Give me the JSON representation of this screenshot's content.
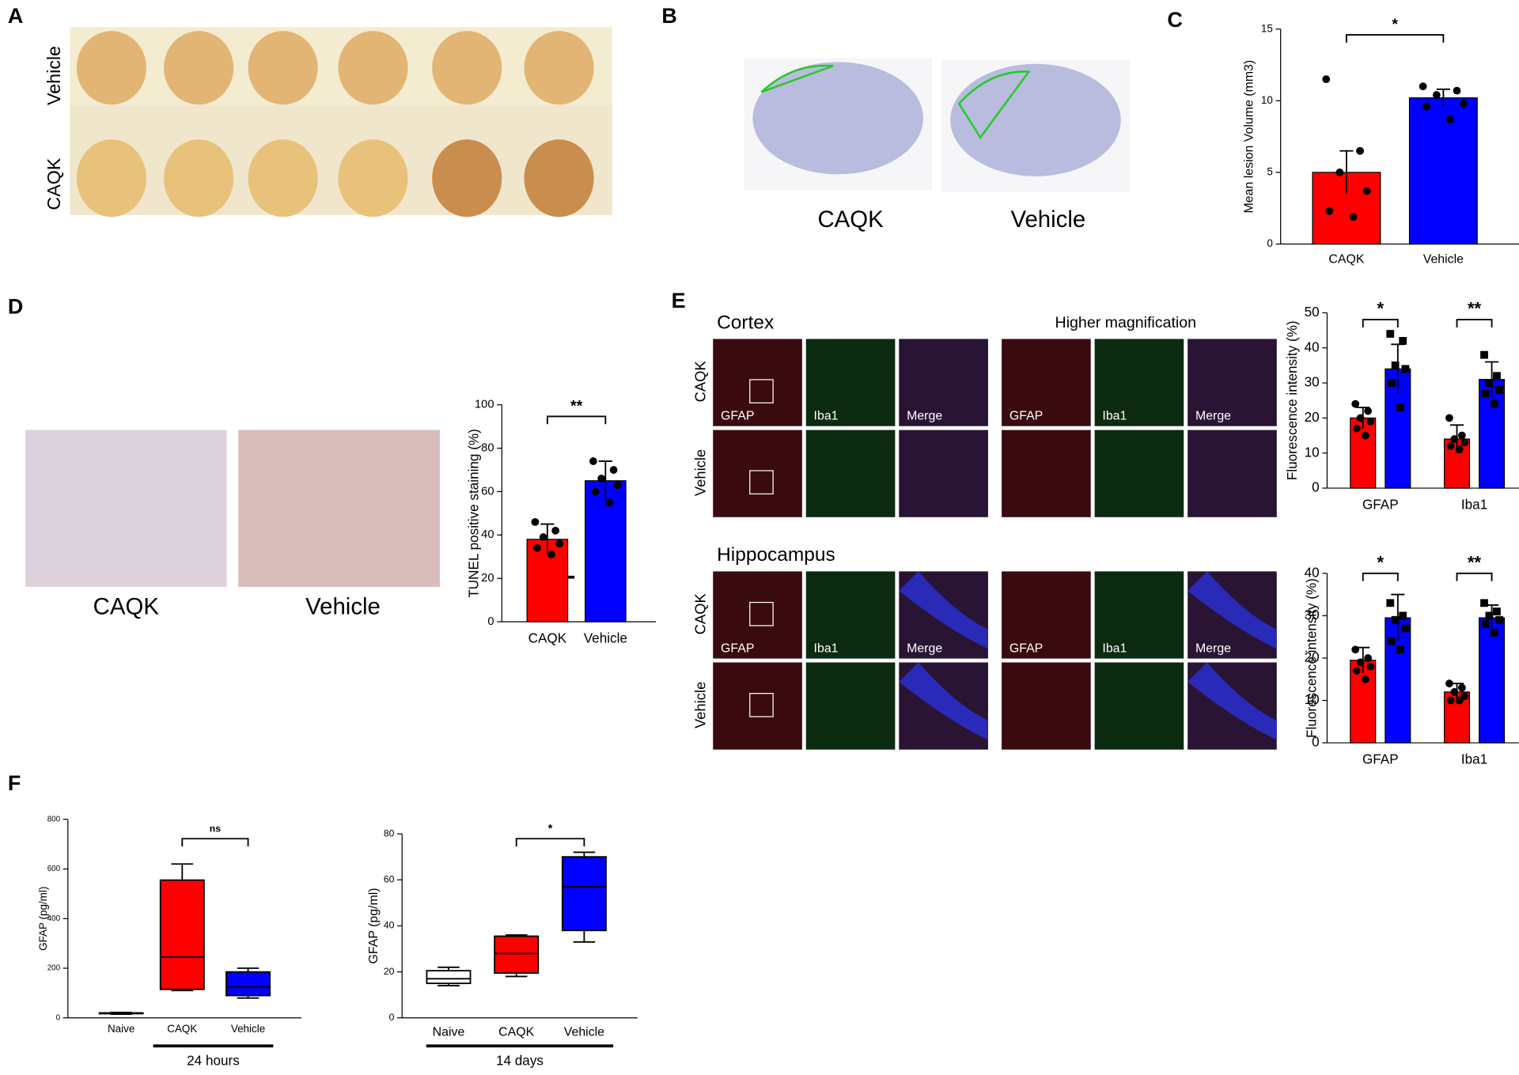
{
  "panel_labels": [
    "A",
    "B",
    "C",
    "D",
    "E",
    "F"
  ],
  "panel_a": {
    "rows": [
      "Vehicle",
      "CAQK"
    ]
  },
  "panel_b": {
    "captions": [
      "CAQK",
      "Vehicle"
    ]
  },
  "panel_d": {
    "captions": [
      "CAQK",
      "Vehicle"
    ]
  },
  "panel_e": {
    "sections": [
      {
        "title": "Cortex",
        "rows": [
          "CAQK",
          "Vehicle"
        ]
      },
      {
        "title": "Hippocampus",
        "rows": [
          "CAQK",
          "Vehicle"
        ]
      }
    ],
    "zoom_title": "Higher magnification",
    "channels": [
      "GFAP",
      "Iba1",
      "Merge"
    ]
  },
  "chart_data": [
    {
      "type": "bar",
      "ylabel": "Mean lesion Volume (mm3)",
      "categories": [
        "CAQK",
        "Vehicle"
      ],
      "values": [
        5.0,
        10.2
      ],
      "errors": [
        1.5,
        0.6
      ],
      "colors": [
        "#ff0000",
        "#0000ff"
      ],
      "points": [
        [
          11.5,
          6.5,
          5.0,
          3.7,
          2.3,
          1.9
        ],
        [
          11.0,
          10.7,
          10.4,
          9.8,
          9.6,
          8.7
        ]
      ],
      "ylim": [
        0,
        15
      ],
      "yticks": [
        0,
        5,
        10,
        15
      ],
      "significance": "*"
    },
    {
      "type": "bar",
      "ylabel": "TUNEL positive staining (%)",
      "categories": [
        "CAQK",
        "Vehicle"
      ],
      "values": [
        38,
        65
      ],
      "errors": [
        7,
        9
      ],
      "colors": [
        "#ff0000",
        "#0000ff"
      ],
      "points": [
        [
          46,
          42,
          39,
          36,
          34,
          31
        ],
        [
          74,
          70,
          66,
          63,
          60,
          55
        ]
      ],
      "ylim": [
        0,
        100
      ],
      "yticks": [
        0,
        20,
        40,
        60,
        80,
        100
      ],
      "significance": "**"
    },
    {
      "type": "grouped_bar",
      "ylabel": "Fluorescence intensity (%)",
      "categories": [
        "GFAP",
        "Iba1"
      ],
      "series": [
        {
          "color": "#ff0000",
          "marker": "circle",
          "values": [
            20,
            14
          ],
          "errors": [
            3,
            4
          ],
          "points": [
            [
              24,
              22,
              20,
              19,
              17,
              15
            ],
            [
              20,
              15,
              14,
              13,
              12,
              11
            ]
          ]
        },
        {
          "color": "#0000ff",
          "marker": "square",
          "values": [
            34,
            31
          ],
          "errors": [
            7,
            5
          ],
          "points": [
            [
              44,
              42,
              35,
              34,
              30,
              23
            ],
            [
              38,
              32,
              30,
              28,
              27,
              24
            ]
          ]
        }
      ],
      "ylim": [
        0,
        50
      ],
      "yticks": [
        0,
        10,
        20,
        30,
        40,
        50
      ],
      "significance": [
        "*",
        "**"
      ]
    },
    {
      "type": "grouped_bar",
      "ylabel": "Fluorescence intensity (%)",
      "categories": [
        "GFAP",
        "Iba1"
      ],
      "series": [
        {
          "color": "#ff0000",
          "marker": "circle",
          "values": [
            19.5,
            12
          ],
          "errors": [
            3,
            2
          ],
          "points": [
            [
              22,
              20,
              19,
              18,
              17,
              15
            ],
            [
              14,
              13,
              12,
              11,
              10,
              10
            ]
          ]
        },
        {
          "color": "#0000ff",
          "marker": "square",
          "values": [
            29.5,
            29.5
          ],
          "errors": [
            5.5,
            3
          ],
          "points": [
            [
              33,
              30,
              29,
              27,
              24,
              22
            ],
            [
              33,
              31,
              30,
              29,
              28,
              26
            ]
          ]
        }
      ],
      "ylim": [
        0,
        40
      ],
      "yticks": [
        0,
        10,
        20,
        30,
        40
      ],
      "significance": [
        "*",
        "**"
      ]
    },
    {
      "type": "box",
      "ylabel": "GFAP (pg/ml)",
      "categories": [
        "Naive",
        "CAQK",
        "Vehicle"
      ],
      "colors": [
        "#ffffff",
        "#ff0000",
        "#0000ff"
      ],
      "boxes": [
        {
          "min": 15,
          "q1": 17,
          "median": 18,
          "q3": 20,
          "max": 22
        },
        {
          "min": 110,
          "q1": 115,
          "median": 245,
          "q3": 555,
          "max": 620
        },
        {
          "min": 80,
          "q1": 90,
          "median": 125,
          "q3": 185,
          "max": 200
        }
      ],
      "ylim": [
        0,
        800
      ],
      "yticks": [
        0,
        200,
        400,
        600,
        800
      ],
      "significance": "ns",
      "group": "24 hours"
    },
    {
      "type": "box",
      "ylabel": "GFAP (pg/ml)",
      "categories": [
        "Naive",
        "CAQK",
        "Vehicle"
      ],
      "colors": [
        "#ffffff",
        "#ff0000",
        "#0000ff"
      ],
      "boxes": [
        {
          "min": 14,
          "q1": 15,
          "median": 17,
          "q3": 20.5,
          "max": 22
        },
        {
          "min": 18,
          "q1": 19.5,
          "median": 28,
          "q3": 35.5,
          "max": 36
        },
        {
          "min": 33,
          "q1": 38,
          "median": 57,
          "q3": 70,
          "max": 72
        }
      ],
      "ylim": [
        0,
        80
      ],
      "yticks": [
        0,
        20,
        40,
        60,
        80
      ],
      "significance": "*",
      "group": "14 days"
    }
  ]
}
